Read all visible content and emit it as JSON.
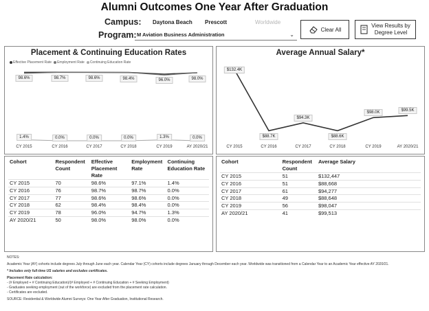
{
  "title": "Alumni Outcomes One Year After Graduation",
  "campus": {
    "label": "Campus:",
    "options": [
      "Daytona Beach",
      "Prescott",
      "Worldwide"
    ]
  },
  "program": {
    "label": "Program:",
    "value": "M Aviation Business Administration"
  },
  "buttons": {
    "clear_all": "Clear All",
    "view_results_1": "View Results by",
    "view_results_2": "Degree Level"
  },
  "placement_chart": {
    "title": "Placement & Continuing Education Rates",
    "legend": [
      "Effective Placement Rate",
      "Employment Rate",
      "Continuing Education Rate"
    ],
    "legend_colors": [
      "#333333",
      "#777777",
      "#aaaaaa"
    ]
  },
  "salary_chart": {
    "title": "Average Annual Salary*"
  },
  "chart_data": [
    {
      "type": "line",
      "title": "Placement & Continuing Education Rates",
      "x": [
        "CY 2015",
        "CY 2016",
        "CY 2017",
        "CY 2018",
        "CY 2019",
        "AY 2020/21"
      ],
      "ylim": [
        0,
        100
      ],
      "series": [
        {
          "name": "Effective Placement Rate",
          "values": [
            98.6,
            98.7,
            98.6,
            98.4,
            96.0,
            98.0
          ],
          "labels": [
            "98.6%",
            "98.7%",
            "98.6%",
            "98.4%",
            "96.0%",
            "98.0%"
          ]
        },
        {
          "name": "Employment Rate",
          "values": [
            97.1,
            98.7,
            98.6,
            98.4,
            94.7,
            98.0
          ]
        },
        {
          "name": "Continuing Education Rate",
          "values": [
            1.4,
            0.0,
            0.0,
            0.0,
            1.3,
            0.0
          ],
          "labels": [
            "1.4%",
            "0.0%",
            "0.0%",
            "0.0%",
            "1.3%",
            "0.0%"
          ]
        }
      ]
    },
    {
      "type": "line",
      "title": "Average Annual Salary*",
      "x": [
        "CY 2015",
        "CY 2016",
        "CY 2017",
        "CY 2018",
        "CY 2019",
        "AY 2020/21"
      ],
      "series": [
        {
          "name": "Average Salary",
          "values": [
            132447,
            88668,
            94277,
            88648,
            98047,
            99513
          ],
          "labels": [
            "$132.4K",
            "$88.7K",
            "$94.3K",
            "$88.6K",
            "$98.0K",
            "$99.5K"
          ]
        }
      ]
    }
  ],
  "placement_table": {
    "headers": [
      [
        "Cohort"
      ],
      [
        "Respondent",
        "Count"
      ],
      [
        "Effective",
        "Placement Rate"
      ],
      [
        "Employment",
        "Rate"
      ],
      [
        "Continuing",
        "Education Rate"
      ]
    ],
    "rows": [
      [
        "CY 2015",
        "70",
        "98.6%",
        "97.1%",
        "1.4%"
      ],
      [
        "CY 2016",
        "76",
        "98.7%",
        "98.7%",
        "0.0%"
      ],
      [
        "CY 2017",
        "77",
        "98.6%",
        "98.6%",
        "0.0%"
      ],
      [
        "CY 2018",
        "62",
        "98.4%",
        "98.4%",
        "0.0%"
      ],
      [
        "CY 2019",
        "78",
        "96.0%",
        "94.7%",
        "1.3%"
      ],
      [
        "AY 2020/21",
        "50",
        "98.0%",
        "98.0%",
        "0.0%"
      ]
    ]
  },
  "salary_table": {
    "headers": [
      [
        "Cohort"
      ],
      [
        "Respondent",
        "Count"
      ],
      [
        "Average Salary"
      ]
    ],
    "rows": [
      [
        "CY 2015",
        "51",
        "$132,447"
      ],
      [
        "CY 2016",
        "51",
        "$88,668"
      ],
      [
        "CY 2017",
        "61",
        "$94,277"
      ],
      [
        "CY 2018",
        "49",
        "$88,648"
      ],
      [
        "CY 2019",
        "56",
        "$98,047"
      ],
      [
        "AY 2020/21",
        "41",
        "$99,513"
      ]
    ]
  },
  "notes": {
    "heading": "NOTES:",
    "line1": "Academic Year (AY) cohorts include degrees July through June each year. Calendar Year (CY) cohorts include degrees January through December each year. Worldwide was transitioned from a Calendar Year to an Academic Year effective AY 2020/21.",
    "line2": "* Includes only full-time US salaries and excludes certificates.",
    "line3": "Placement Rate calculation:",
    "line4": "- (# Employed + # Continuing Education)/(# Employed + # Continuing Education + # Seeking Employment)",
    "line5": "- Graduates seeking employment (out of the workforce) are excluded from the placement rate calculation.",
    "line6": "- Certificates are excluded.",
    "line7": "SOURCE: Residential & Worldwide Alumni Surveys: One Year After Graduation, Institutional Research."
  }
}
